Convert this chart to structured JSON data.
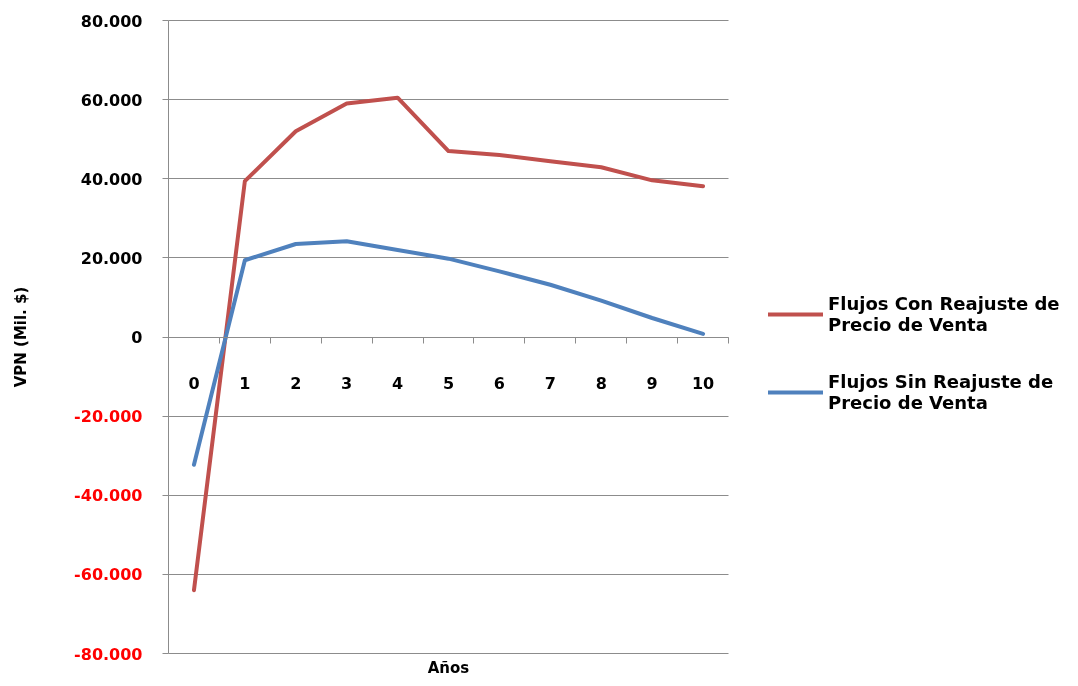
{
  "chart_data": {
    "type": "line",
    "xlabel": "Años",
    "ylabel": "VPN (Mil. $)",
    "categories": [
      "0",
      "1",
      "2",
      "3",
      "4",
      "5",
      "6",
      "7",
      "8",
      "9",
      "10"
    ],
    "series": [
      {
        "name": "Flujos Con Reajuste de Precio de Venta",
        "color": "#c0504d",
        "values": [
          -64000,
          39400,
          52000,
          59000,
          60500,
          47000,
          46000,
          44400,
          42900,
          39600,
          38100
        ]
      },
      {
        "name": "Flujos Sin Reajuste de Precio de Venta",
        "color": "#4f81bd",
        "values": [
          -32300,
          19400,
          23500,
          24200,
          22000,
          19800,
          16600,
          13200,
          9200,
          4800,
          800
        ]
      }
    ],
    "ylim": [
      -80000,
      80000
    ],
    "yticks": [
      {
        "value": -80000,
        "label": "-80.000"
      },
      {
        "value": -60000,
        "label": "-60.000"
      },
      {
        "value": -40000,
        "label": "-40.000"
      },
      {
        "value": -20000,
        "label": "-20.000"
      },
      0,
      {
        "value": 20000,
        "label": "20.000"
      },
      {
        "value": 40000,
        "label": "40.000"
      },
      {
        "value": 60000,
        "label": "60.000"
      },
      {
        "value": 80000,
        "label": "80.000"
      }
    ],
    "grid": "y",
    "legend": "right",
    "line_style": "solid"
  }
}
